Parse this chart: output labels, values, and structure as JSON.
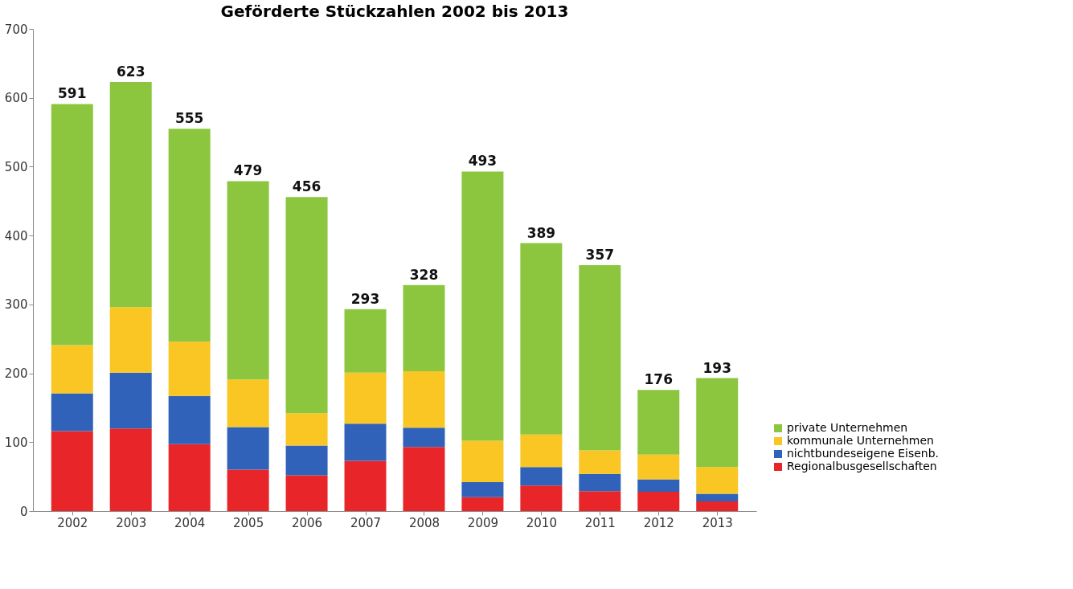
{
  "chart_data": {
    "type": "bar",
    "title": "Geförderte Stückzahlen 2002 bis 2013",
    "categories": [
      "2002",
      "2003",
      "2004",
      "2005",
      "2006",
      "2007",
      "2008",
      "2009",
      "2010",
      "2011",
      "2012",
      "2013"
    ],
    "stacked": true,
    "series": [
      {
        "name": "Regionalbusgesellschaften",
        "color": "#e8262a",
        "values": [
          116,
          120,
          97,
          60,
          52,
          73,
          93,
          20,
          37,
          29,
          28,
          14
        ]
      },
      {
        "name": "nichtbundeseigene Eisenb.",
        "color": "#2f62b8",
        "values": [
          55,
          81,
          70,
          62,
          43,
          54,
          28,
          22,
          27,
          25,
          18,
          11
        ]
      },
      {
        "name": "kommunale Unternehmen",
        "color": "#f9c623",
        "values": [
          70,
          95,
          79,
          69,
          47,
          74,
          82,
          60,
          47,
          34,
          36,
          39
        ]
      },
      {
        "name": "private Unternehmen",
        "color": "#8cc63f",
        "values": [
          350,
          327,
          309,
          288,
          314,
          92,
          125,
          391,
          278,
          269,
          94,
          129
        ]
      }
    ],
    "totals": [
      "591",
      "623",
      "555",
      "479",
      "456",
      "293",
      "328",
      "493",
      "389",
      "357",
      "176",
      "193"
    ],
    "ylim": [
      0,
      700
    ],
    "yticks": [
      0,
      100,
      200,
      300,
      400,
      500,
      600,
      700
    ],
    "grid": false,
    "legend": "bottom right"
  }
}
